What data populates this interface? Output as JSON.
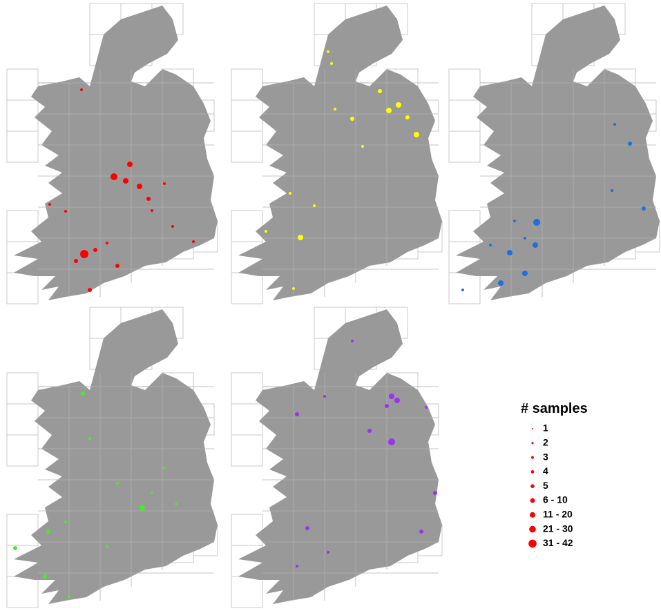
{
  "maps": [
    {
      "color": "#ff0000"
    },
    {
      "color": "#ffff00"
    },
    {
      "color": "#1e6fe0"
    },
    {
      "color": "#44ee22"
    },
    {
      "color": "#9933ee"
    }
  ],
  "legend": {
    "title": "# samples",
    "color": "#ff0000",
    "items": [
      "1",
      "2",
      "3",
      "4",
      "5",
      "6 - 10",
      "11 - 20",
      "21 - 30",
      "31 - 42"
    ]
  }
}
